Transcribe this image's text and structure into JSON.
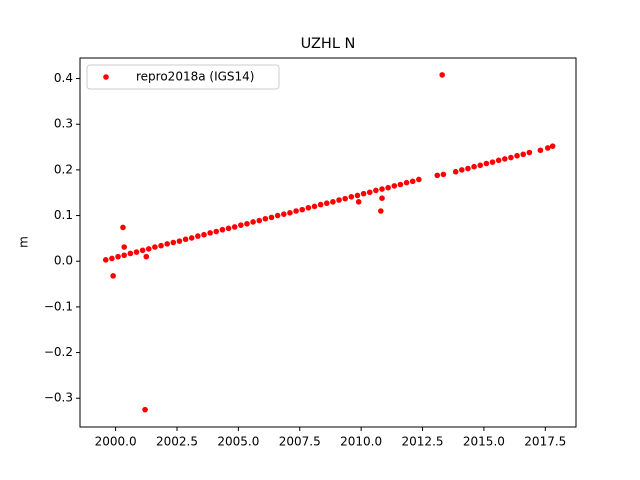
{
  "chart_data": {
    "type": "scatter",
    "title": "UZHL N",
    "ylabel": "m",
    "xlim": [
      1998.55,
      2018.75
    ],
    "ylim": [
      -0.363,
      0.445
    ],
    "xticks": [
      {
        "value": 2000,
        "label": "2000.0"
      },
      {
        "value": 2002.5,
        "label": "2002.5"
      },
      {
        "value": 2005,
        "label": "2005.0"
      },
      {
        "value": 2007.5,
        "label": "2007.5"
      },
      {
        "value": 2010,
        "label": "2010.0"
      },
      {
        "value": 2012.5,
        "label": "2012.5"
      },
      {
        "value": 2015,
        "label": "2015.0"
      },
      {
        "value": 2017.5,
        "label": "2017.5"
      }
    ],
    "yticks": [
      {
        "value": -0.3,
        "label": "−0.3"
      },
      {
        "value": -0.2,
        "label": "−0.2"
      },
      {
        "value": -0.1,
        "label": "−0.1"
      },
      {
        "value": 0,
        "label": "0.0"
      },
      0.1,
      0.2,
      0.3,
      0.4
    ],
    "grid": false,
    "legend": "upper left",
    "series": [
      {
        "name": "repro2018a (IGS14)",
        "color": "#ff0000",
        "x": [
          1999.6,
          1999.85,
          2000.1,
          2000.35,
          2000.6,
          2000.85,
          2001.1,
          2001.35,
          2001.6,
          2001.85,
          2002.1,
          2002.35,
          2002.6,
          2002.85,
          2003.1,
          2003.35,
          2003.6,
          2003.85,
          2004.1,
          2004.35,
          2004.6,
          2004.85,
          2005.1,
          2005.35,
          2005.6,
          2005.85,
          2006.1,
          2006.35,
          2006.6,
          2006.85,
          2007.1,
          2007.35,
          2007.6,
          2007.85,
          2008.1,
          2008.35,
          2008.6,
          2008.85,
          2009.1,
          2009.35,
          2009.6,
          2009.85,
          2010.1,
          2010.35,
          2010.6,
          2010.85,
          2011.1,
          2011.35,
          2011.6,
          2011.85,
          2012.1,
          2012.35,
          2013.1,
          2013.35,
          2013.85,
          2014.1,
          2014.35,
          2014.6,
          2014.85,
          2015.1,
          2015.35,
          2015.6,
          2015.85,
          2016.1,
          2016.35,
          2016.6,
          2016.85,
          2017.3,
          2017.6,
          2017.8,
          2013.3,
          2001.2,
          1999.9,
          2000.3,
          2000.35,
          2001.25,
          2010.8,
          2010.85,
          2009.9
        ],
        "values": [
          0.003,
          0.006,
          0.01,
          0.013,
          0.017,
          0.02,
          0.024,
          0.027,
          0.031,
          0.034,
          0.038,
          0.041,
          0.044,
          0.048,
          0.051,
          0.055,
          0.058,
          0.062,
          0.065,
          0.069,
          0.072,
          0.075,
          0.079,
          0.082,
          0.086,
          0.089,
          0.093,
          0.096,
          0.1,
          0.103,
          0.106,
          0.11,
          0.113,
          0.117,
          0.12,
          0.124,
          0.127,
          0.13,
          0.134,
          0.137,
          0.141,
          0.144,
          0.148,
          0.151,
          0.155,
          0.158,
          0.161,
          0.165,
          0.168,
          0.172,
          0.175,
          0.179,
          0.188,
          0.19,
          0.196,
          0.2,
          0.203,
          0.207,
          0.21,
          0.214,
          0.217,
          0.221,
          0.224,
          0.227,
          0.231,
          0.234,
          0.238,
          0.243,
          0.248,
          0.252,
          0.408,
          -0.325,
          -0.032,
          0.074,
          0.031,
          0.01,
          0.11,
          0.138,
          0.13
        ]
      }
    ]
  }
}
